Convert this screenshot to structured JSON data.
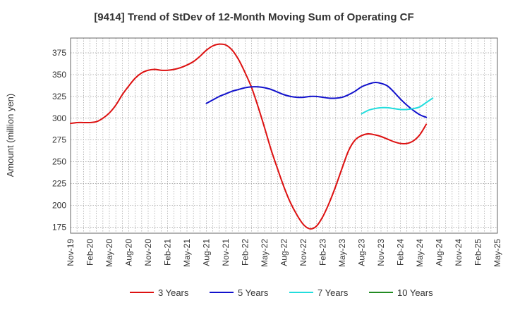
{
  "chart_data": {
    "type": "line",
    "title": "[9414]  Trend of StDev of 12-Month Moving Sum of Operating CF",
    "xlabel": "",
    "ylabel": "Amount (million yen)",
    "ylim": [
      168,
      392
    ],
    "yticks": [
      175,
      200,
      225,
      250,
      275,
      300,
      325,
      350,
      375
    ],
    "grid": true,
    "legend_position": "bottom",
    "x_tick_labels": [
      "Nov-19",
      "Feb-20",
      "May-20",
      "Aug-20",
      "Nov-20",
      "Feb-21",
      "May-21",
      "Aug-21",
      "Nov-21",
      "Feb-22",
      "May-22",
      "Aug-22",
      "Nov-22",
      "Feb-23",
      "May-23",
      "Aug-23",
      "Nov-23",
      "Feb-24",
      "May-24",
      "Aug-24",
      "Nov-24",
      "Feb-25",
      "May-25"
    ],
    "months_total": 66,
    "series": [
      {
        "name": "3 Years",
        "color": "#dd1111",
        "start_month": 0,
        "values": [
          294,
          295,
          295,
          295,
          296,
          300,
          306,
          315,
          327,
          337,
          346,
          352,
          355,
          356,
          355,
          355,
          356,
          358,
          361,
          365,
          371,
          378,
          383,
          385,
          384,
          378,
          367,
          352,
          335,
          313,
          289,
          264,
          242,
          221,
          203,
          189,
          178,
          173,
          176,
          187,
          203,
          222,
          243,
          263,
          275,
          280,
          282,
          281,
          279,
          276,
          273,
          271,
          271,
          274,
          281,
          293
        ]
      },
      {
        "name": "5 Years",
        "color": "#1111cc",
        "start_month": 21,
        "values": [
          317,
          321,
          325,
          328,
          331,
          333,
          335,
          336,
          336,
          335,
          333,
          330,
          327,
          325,
          324,
          324,
          325,
          325,
          324,
          323,
          323,
          324,
          327,
          331,
          336,
          339,
          341,
          340,
          337,
          330,
          322,
          315,
          309,
          304,
          301
        ]
      },
      {
        "name": "7 Years",
        "color": "#22dddd",
        "start_month": 45,
        "values": [
          305,
          309,
          311,
          312,
          312,
          311,
          310,
          310,
          311,
          313,
          318,
          323
        ]
      },
      {
        "name": "10 Years",
        "color": "#228b22",
        "start_month": 0,
        "values": []
      }
    ]
  }
}
